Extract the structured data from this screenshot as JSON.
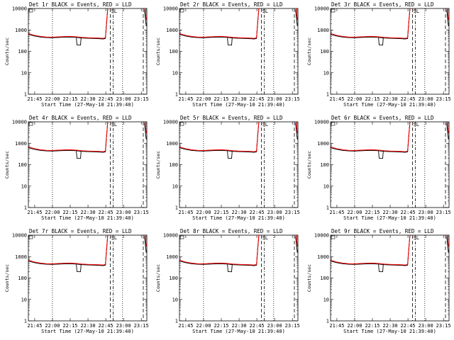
{
  "colors": {
    "events": "#000000",
    "lld": "#ff0000",
    "background": "#ffffff"
  },
  "x_tick_labels": [
    "21:45",
    "22:00",
    "22:15",
    "22:30",
    "22:45",
    "23:00",
    "23:15"
  ],
  "y_tick_labels": [
    "1",
    "10",
    "100",
    "1000",
    "10000"
  ],
  "ylabel": "Counts/sec",
  "xlabel": "Start Time (27-May-10 21:39:40)",
  "chart_data": [
    {
      "title": "Det 1r BLACK = Events, RED = LLD",
      "type": "line",
      "marker_label": "SL"
    },
    {
      "title": "Det 2r BLACK = Events, RED = LLD",
      "type": "line",
      "marker_label": "SL"
    },
    {
      "title": "Det 3r BLACK = Events, RED = LLD",
      "type": "line",
      "marker_label": "SL"
    },
    {
      "title": "Det 4r BLACK = Events, RED = LLD",
      "type": "line",
      "marker_label": "SL"
    },
    {
      "title": "Det 5r BLACK = Events, RED = LLD",
      "type": "line",
      "marker_label": "SL"
    },
    {
      "title": "Det 6r BLACK = Events, RED = LLD",
      "type": "line",
      "marker_label": "SL"
    },
    {
      "title": "Det 7r BLACK = Events, RED = LLD",
      "type": "line",
      "marker_label": "SL"
    },
    {
      "title": "Det 8r BLACK = Events, RED = LLD",
      "type": "line",
      "marker_label": "SL"
    },
    {
      "title": "Det 9r BLACK = Events, RED = LLD",
      "type": "line",
      "marker_label": "SL"
    }
  ],
  "series_shape": {
    "x_unit": "minutes after 21:39:40",
    "x_range": [
      0,
      100
    ],
    "y_range": [
      1,
      10000
    ],
    "y_scale": "log",
    "x_ticks_min": [
      5.33,
      20.33,
      35.33,
      50.33,
      65.33,
      80.33,
      95.33
    ],
    "events": [
      [
        0,
        620
      ],
      [
        5,
        520
      ],
      [
        10,
        470
      ],
      [
        15,
        440
      ],
      [
        20,
        430
      ],
      [
        25,
        445
      ],
      [
        30,
        460
      ],
      [
        35,
        470
      ],
      [
        40,
        450
      ],
      [
        45,
        420
      ],
      [
        50,
        410
      ],
      [
        55,
        400
      ],
      [
        60,
        390
      ],
      [
        63,
        380
      ],
      [
        65,
        400
      ],
      [
        66,
        2000
      ],
      [
        67,
        10000
      ]
    ],
    "events_dip": [
      [
        40.5,
        420
      ],
      [
        41,
        200
      ],
      [
        44,
        195
      ],
      [
        44.5,
        420
      ]
    ],
    "events_tail": [
      [
        98,
        9000
      ],
      [
        99.5,
        1500
      ]
    ],
    "lld": [
      [
        0,
        680
      ],
      [
        5,
        560
      ],
      [
        10,
        500
      ],
      [
        15,
        470
      ],
      [
        20,
        460
      ],
      [
        25,
        475
      ],
      [
        30,
        490
      ],
      [
        35,
        500
      ],
      [
        40,
        480
      ],
      [
        45,
        450
      ],
      [
        50,
        435
      ],
      [
        55,
        425
      ],
      [
        60,
        415
      ],
      [
        63,
        405
      ],
      [
        65,
        430
      ],
      [
        66,
        2300
      ],
      [
        67,
        11000
      ]
    ],
    "lld_tail": [
      [
        98.5,
        11000
      ],
      [
        99.5,
        3000
      ]
    ],
    "vlines_dotted": [
      20.3,
      79.5
    ],
    "vlines_dashed": [
      69.2,
      97.0
    ],
    "vline_dashdot": [
      71.5
    ]
  }
}
